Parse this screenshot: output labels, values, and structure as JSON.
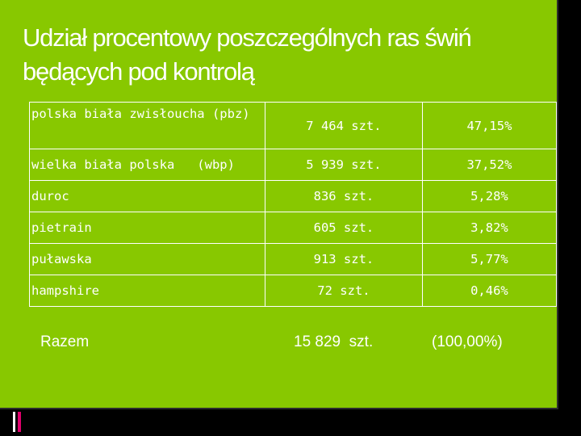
{
  "slide": {
    "title": "Udział procentowy poszczególnych ras świń będących pod kontrolą",
    "colors": {
      "background": "#88c800",
      "text": "#ffffff",
      "accent": "#e0006c"
    }
  },
  "table": {
    "rows": [
      {
        "breed": "polska biała zwisłoucha (pbz)",
        "count": "7 464 szt.",
        "percent": "47,15%"
      },
      {
        "breed": "wielka biała polska   (wbp)",
        "count": "5 939 szt.",
        "percent": "37,52%"
      },
      {
        "breed": "duroc",
        "count": "836 szt.",
        "percent": "5,28%"
      },
      {
        "breed": "pietrain",
        "count": "605 szt.",
        "percent": "3,82%"
      },
      {
        "breed": "puławska",
        "count": "913 szt.",
        "percent": "5,77%"
      },
      {
        "breed": "hampshire",
        "count": "72 szt.",
        "percent": "0,46%"
      }
    ]
  },
  "total": {
    "label": "Razem",
    "count": "15 829  szt.",
    "percent": "(100,00%)"
  }
}
